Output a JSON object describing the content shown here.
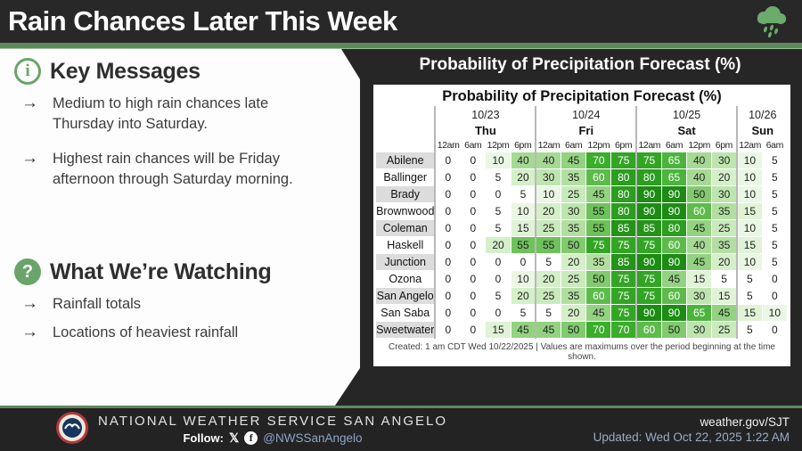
{
  "header": {
    "title": "Rain Chances Later This Week"
  },
  "key_messages": {
    "title": "Key Messages",
    "bullets": [
      "Medium to high rain chances late Thursday into Saturday.",
      "Highest rain chances will be Friday afternoon through Saturday morning."
    ]
  },
  "watching": {
    "title": "What We’re Watching",
    "bullets": [
      "Rainfall totals",
      "Locations of heaviest rainfall"
    ]
  },
  "panel": {
    "title": "Probability of Precipitation Forecast (%)"
  },
  "chart_data": {
    "type": "heatmap",
    "title": "Probability of Precipitation Forecast (%)",
    "column_groups": [
      {
        "date": "10/23",
        "day": "Thu",
        "times": [
          "12am",
          "6am",
          "12pm",
          "6pm"
        ]
      },
      {
        "date": "10/24",
        "day": "Fri",
        "times": [
          "12am",
          "6am",
          "12pm",
          "6pm"
        ]
      },
      {
        "date": "10/25",
        "day": "Sat",
        "times": [
          "12am",
          "6am",
          "12pm",
          "6pm"
        ]
      },
      {
        "date": "10/26",
        "day": "Sun",
        "times": [
          "12am",
          "6am"
        ]
      }
    ],
    "rows": [
      {
        "name": "Abilene",
        "values": [
          0,
          0,
          10,
          40,
          40,
          45,
          70,
          75,
          75,
          65,
          40,
          30,
          10,
          5
        ]
      },
      {
        "name": "Ballinger",
        "values": [
          0,
          0,
          5,
          20,
          30,
          35,
          60,
          80,
          80,
          65,
          40,
          20,
          10,
          5
        ]
      },
      {
        "name": "Brady",
        "values": [
          0,
          0,
          0,
          5,
          10,
          25,
          45,
          80,
          90,
          90,
          50,
          30,
          10,
          5
        ]
      },
      {
        "name": "Brownwood",
        "values": [
          0,
          0,
          5,
          10,
          20,
          30,
          55,
          80,
          90,
          90,
          60,
          35,
          15,
          5
        ]
      },
      {
        "name": "Coleman",
        "values": [
          0,
          0,
          5,
          15,
          25,
          35,
          55,
          85,
          85,
          80,
          45,
          25,
          10,
          5
        ]
      },
      {
        "name": "Haskell",
        "values": [
          0,
          0,
          20,
          55,
          55,
          50,
          75,
          75,
          75,
          60,
          40,
          35,
          15,
          5
        ]
      },
      {
        "name": "Junction",
        "values": [
          0,
          0,
          0,
          0,
          5,
          20,
          35,
          85,
          90,
          90,
          45,
          20,
          10,
          5
        ]
      },
      {
        "name": "Ozona",
        "values": [
          0,
          0,
          0,
          10,
          20,
          25,
          50,
          75,
          75,
          45,
          15,
          5,
          5,
          0
        ]
      },
      {
        "name": "San Angelo",
        "values": [
          0,
          0,
          5,
          20,
          25,
          35,
          60,
          75,
          75,
          60,
          30,
          15,
          5,
          0
        ]
      },
      {
        "name": "San Saba",
        "values": [
          0,
          0,
          0,
          5,
          5,
          20,
          45,
          75,
          90,
          90,
          65,
          45,
          15,
          10
        ]
      },
      {
        "name": "Sweetwater",
        "values": [
          0,
          0,
          15,
          45,
          45,
          50,
          70,
          70,
          60,
          50,
          30,
          25,
          5,
          0
        ]
      }
    ],
    "footnote": "Created: 1 am CDT Wed 10/22/2025  |  Values are maximums over the period beginning at the time shown.",
    "color_scale": {
      "anchors": [
        [
          10,
          "#eaf7e4"
        ],
        [
          20,
          "#d5efc9"
        ],
        [
          40,
          "#a6da94"
        ],
        [
          55,
          "#6ec25b"
        ],
        [
          70,
          "#3aad2b"
        ],
        [
          90,
          "#1c8c13"
        ]
      ],
      "zero_color": "#ffffff",
      "white_text_threshold": 60
    },
    "legend_position": "none",
    "grid": true
  },
  "footer": {
    "org": "NATIONAL WEATHER SERVICE SAN ANGELO",
    "follow_label": "Follow:",
    "handle": "@NWSSanAngelo",
    "url": "weather.gov/SJT",
    "updated": "Updated: Wed Oct 22, 2025 1:22 AM"
  },
  "colors": {
    "accent_green": "#6aa46a",
    "bar_green": "#5d8a5d",
    "header_dark": "#282828",
    "panel_dark": "#262626",
    "footer_dark": "#232323",
    "handle_blue": "#8ba5c9"
  }
}
